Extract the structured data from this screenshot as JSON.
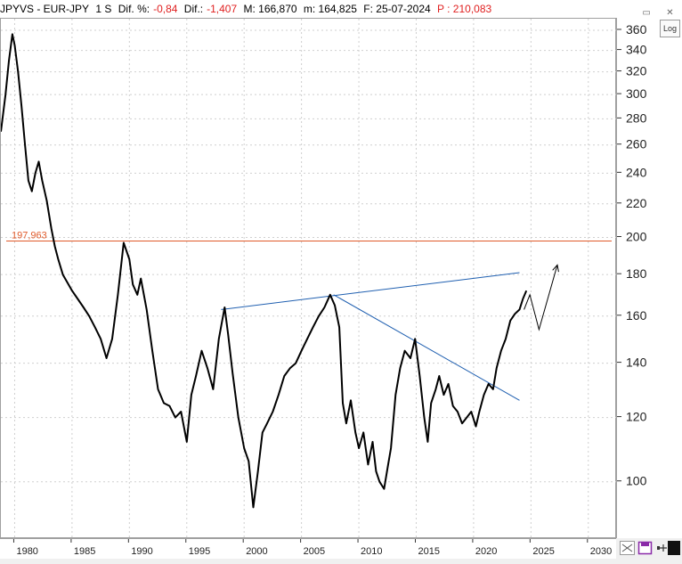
{
  "header": {
    "symbol": "JPYVS - EUR-JPY",
    "interval": "1 S",
    "dif_pct_label": "Dif. %:",
    "dif_pct_value": "-0,84",
    "dif_label": "Dif.:",
    "dif_value": "-1,407",
    "max_label": "M: 166,870",
    "min_label": "m: 164,825",
    "date_label": "F: 25-07-2024",
    "price_label": "P : 210,083"
  },
  "controls": {
    "log_label": "Log"
  },
  "colors": {
    "price": "#000000",
    "hline": "#e05a2a",
    "trendline": "#1f5fb0",
    "forecast": "#000000"
  },
  "chart_data": {
    "type": "line",
    "y_scale": "log",
    "ylim": [
      85,
      372
    ],
    "xlim": [
      1978.8,
      2032.5
    ],
    "y_ticks": [
      100,
      120,
      140,
      160,
      180,
      200,
      220,
      240,
      260,
      280,
      300,
      320,
      340,
      360
    ],
    "x_ticks": [
      1980,
      1985,
      1990,
      1995,
      2000,
      2005,
      2010,
      2015,
      2020,
      2025,
      2030
    ],
    "series": [
      {
        "x": [
          1978.8,
          1979.2,
          1979.5,
          1979.8,
          1980.0,
          1980.3,
          1980.6,
          1980.9,
          1981.2,
          1981.5,
          1981.8,
          1982.1,
          1982.4,
          1982.8,
          1983.2,
          1983.5,
          1983.8,
          1984.2,
          1984.6,
          1985.0,
          1985.5,
          1986.0,
          1986.5,
          1987.0,
          1987.5,
          1988.0,
          1988.5,
          1989.0,
          1989.5,
          1990.0,
          1990.3,
          1990.7,
          1991.0,
          1991.5,
          1992.0,
          1992.5,
          1993.0,
          1993.5,
          1994.0,
          1994.5,
          1995.0,
          1995.4,
          1995.8,
          1996.3,
          1996.8,
          1997.3,
          1997.8,
          1998.3,
          1998.6,
          1999.0,
          1999.5,
          2000.0,
          2000.4,
          2000.8,
          2001.2,
          2001.6,
          2002.0,
          2002.5,
          2003.0,
          2003.5,
          2004.0,
          2004.5,
          2005.0,
          2005.5,
          2006.0,
          2006.5,
          2007.0,
          2007.5,
          2007.9,
          2008.3,
          2008.6,
          2008.9,
          2009.3,
          2009.7,
          2010.0,
          2010.4,
          2010.8,
          2011.2,
          2011.5,
          2011.8,
          2012.2,
          2012.5,
          2012.8,
          2013.2,
          2013.6,
          2014.0,
          2014.5,
          2014.9,
          2015.3,
          2015.7,
          2016.0,
          2016.3,
          2016.7,
          2017.0,
          2017.4,
          2017.8,
          2018.2,
          2018.6,
          2019.0,
          2019.4,
          2019.8,
          2020.2,
          2020.5,
          2020.9,
          2021.3,
          2021.7,
          2022.0,
          2022.4,
          2022.8,
          2023.2,
          2023.6,
          2024.0,
          2024.3,
          2024.6
        ],
        "values": [
          270,
          300,
          330,
          356,
          345,
          320,
          290,
          260,
          235,
          228,
          240,
          248,
          235,
          222,
          205,
          195,
          188,
          180,
          176,
          172,
          168,
          164,
          160,
          155,
          150,
          142,
          150,
          170,
          197,
          188,
          175,
          170,
          178,
          163,
          145,
          130,
          125,
          124,
          120,
          122,
          112,
          128,
          135,
          145,
          138,
          130,
          150,
          164,
          152,
          136,
          120,
          110,
          106,
          93,
          103,
          115,
          118,
          122,
          128,
          135,
          138,
          140,
          145,
          150,
          155,
          160,
          164,
          170,
          165,
          155,
          125,
          118,
          126,
          115,
          110,
          115,
          105,
          112,
          103,
          100,
          98,
          104,
          110,
          128,
          138,
          145,
          142,
          150,
          135,
          120,
          112,
          125,
          130,
          135,
          128,
          132,
          124,
          122,
          118,
          120,
          122,
          117,
          122,
          128,
          132,
          130,
          138,
          145,
          150,
          158,
          161,
          163,
          168,
          172
        ]
      }
    ],
    "annotations": {
      "hline_value": 197.963,
      "hline_label": "197,963",
      "trend_up": [
        [
          1998.0,
          163
        ],
        [
          2024.0,
          181
        ]
      ],
      "trend_down": [
        [
          2007.8,
          170
        ],
        [
          2024.0,
          126
        ]
      ],
      "forecast": [
        [
          2024.4,
          163
        ],
        [
          2024.9,
          170
        ],
        [
          2025.7,
          154
        ],
        [
          2027.3,
          185
        ]
      ]
    }
  }
}
